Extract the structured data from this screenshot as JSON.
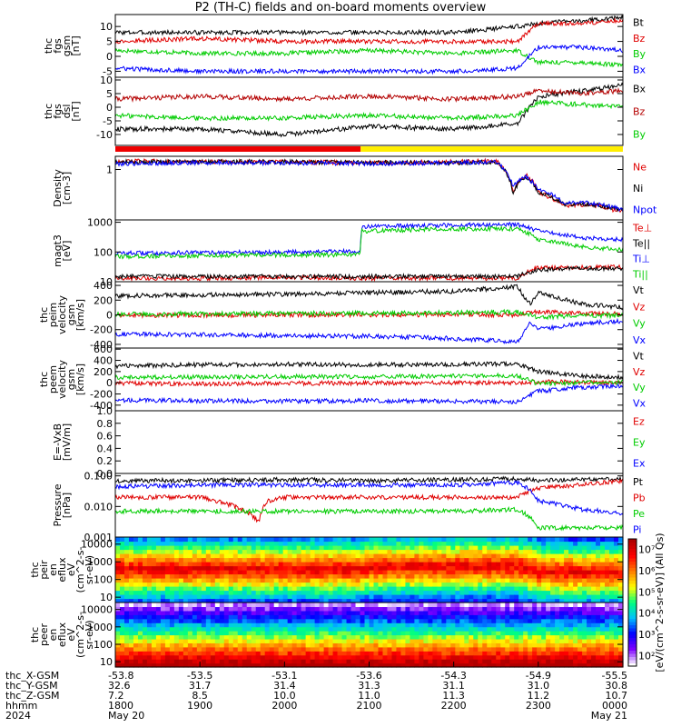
{
  "title": "P2 (TH-C) fields and on-board moments overview",
  "chart_data": [
    {
      "id": "fgs_gsm",
      "type": "line",
      "ylabel": [
        "thc",
        "fgs",
        "gsm",
        "[nT]"
      ],
      "ylim": [
        -7,
        14
      ],
      "yticks": [
        -5,
        0,
        5,
        10
      ],
      "series": [
        {
          "name": "Bt",
          "color": "#000000",
          "x": [
            18.0,
            19.0,
            20.0,
            21.0,
            22.0,
            22.75,
            23.0,
            23.5,
            24.0
          ],
          "y": [
            8,
            8,
            8,
            8,
            8,
            10,
            11,
            12,
            13
          ]
        },
        {
          "name": "Bz",
          "color": "#e00000",
          "x": [
            18.0,
            19.0,
            20.0,
            21.0,
            22.0,
            22.75,
            23.0,
            23.5,
            24.0
          ],
          "y": [
            5,
            6,
            5,
            5,
            5,
            5,
            11,
            11,
            12
          ]
        },
        {
          "name": "By",
          "color": "#00cc00",
          "x": [
            18.0,
            19.0,
            20.0,
            21.0,
            22.0,
            22.75,
            23.0,
            23.5,
            24.0
          ],
          "y": [
            2,
            1,
            1,
            2,
            1,
            2,
            -2,
            -2,
            -3
          ]
        },
        {
          "name": "Bx",
          "color": "#0000ff",
          "x": [
            18.0,
            19.0,
            20.0,
            21.0,
            22.0,
            22.75,
            23.0,
            23.5,
            24.0
          ],
          "y": [
            -4,
            -5,
            -5,
            -5,
            -5,
            -4,
            3,
            3,
            2
          ]
        }
      ]
    },
    {
      "id": "fgs_dsl",
      "type": "line",
      "ylabel": [
        "thc",
        "fgs",
        "dsl",
        "[nT]"
      ],
      "ylim": [
        -14,
        11
      ],
      "yticks": [
        -10,
        -5,
        0,
        5,
        10
      ],
      "series": [
        {
          "name": "Bx",
          "color": "#000000",
          "x": [
            18.0,
            19.0,
            20.0,
            21.0,
            22.0,
            22.75,
            23.0,
            23.5,
            24.0
          ],
          "y": [
            -8,
            -8,
            -10,
            -7,
            -8,
            -6,
            4,
            6,
            8
          ]
        },
        {
          "name": "Bz",
          "color": "#b40000",
          "x": [
            18.0,
            19.0,
            20.0,
            21.0,
            22.0,
            22.75,
            23.0,
            23.5,
            24.0
          ],
          "y": [
            3,
            4,
            3,
            4,
            3,
            4,
            6,
            5,
            6
          ]
        },
        {
          "name": "By",
          "color": "#00cc00",
          "x": [
            18.0,
            19.0,
            20.0,
            21.0,
            22.0,
            22.75,
            23.0,
            23.5,
            24.0
          ],
          "y": [
            -3,
            -4,
            -4,
            -3,
            -4,
            -3,
            2,
            1,
            0
          ]
        }
      ]
    },
    {
      "id": "density",
      "type": "line",
      "ylabel": [
        "Density",
        "[cm-3]"
      ],
      "yscale": "log",
      "ylim": [
        0.03,
        2.5
      ],
      "yticks": [
        1
      ],
      "series": [
        {
          "name": "Ne",
          "color": "#e00000",
          "x": [
            18.0,
            19.0,
            20.0,
            21.0,
            22.0,
            22.5,
            22.7,
            22.85,
            23.0,
            23.3,
            23.6,
            24.0
          ],
          "y": [
            1.8,
            1.7,
            1.7,
            1.6,
            1.7,
            1.8,
            0.2,
            0.7,
            0.2,
            0.08,
            0.09,
            0.05
          ]
        },
        {
          "name": "Ni",
          "color": "#000000",
          "x": [
            18.0,
            19.0,
            20.0,
            21.0,
            22.0,
            22.5,
            22.7,
            22.85,
            23.0,
            23.3,
            23.6,
            24.0
          ],
          "y": [
            1.7,
            1.7,
            1.7,
            1.6,
            1.6,
            1.7,
            0.2,
            0.6,
            0.2,
            0.09,
            0.09,
            0.06
          ]
        },
        {
          "name": "Npot",
          "color": "#0000ff",
          "x": [
            18.0,
            19.0,
            20.0,
            21.0,
            22.0,
            22.5,
            22.7,
            22.85,
            23.0,
            23.3,
            23.6,
            24.0
          ],
          "y": [
            1.5,
            1.6,
            1.6,
            1.5,
            1.6,
            1.7,
            0.3,
            0.6,
            0.25,
            0.1,
            0.1,
            0.06
          ]
        }
      ]
    },
    {
      "id": "temperature",
      "type": "line",
      "ylabel": [
        "magt3",
        "[eV]"
      ],
      "yscale": "log",
      "ylim": [
        10,
        1200
      ],
      "yticks": [
        10,
        100,
        1000
      ],
      "series": [
        {
          "name": "Te⊥",
          "color": "#e00000",
          "x": [
            18.0,
            19.0,
            20.0,
            21.0,
            22.0,
            22.75,
            23.0,
            23.5,
            24.0
          ],
          "y": [
            13,
            13,
            14,
            13,
            13,
            13,
            30,
            30,
            32
          ]
        },
        {
          "name": "Te||",
          "color": "#000000",
          "x": [
            18.0,
            19.0,
            20.0,
            21.0,
            22.0,
            22.75,
            23.0,
            23.5,
            24.0
          ],
          "y": [
            15,
            15,
            15,
            15,
            15,
            15,
            25,
            28,
            28
          ]
        },
        {
          "name": "Ti⊥",
          "color": "#0000ff",
          "x": [
            18.0,
            19.0,
            20.0,
            20.9,
            20.91,
            22.0,
            22.75,
            23.0,
            23.5,
            24.0
          ],
          "y": [
            90,
            95,
            100,
            105,
            700,
            800,
            850,
            500,
            300,
            260
          ]
        },
        {
          "name": "Ti||",
          "color": "#00cc00",
          "x": [
            18.0,
            19.0,
            20.0,
            20.9,
            20.91,
            22.0,
            22.75,
            23.0,
            23.5,
            24.0
          ],
          "y": [
            70,
            75,
            80,
            80,
            500,
            600,
            600,
            250,
            150,
            120
          ]
        }
      ]
    },
    {
      "id": "peim_velocity",
      "type": "line",
      "ylabel": [
        "thc",
        "peim",
        "velocity",
        "gsm",
        "[km/s]"
      ],
      "ylim": [
        -450,
        450
      ],
      "yticks": [
        -400,
        -200,
        0,
        200,
        400
      ],
      "series": [
        {
          "name": "Vt",
          "color": "#000000",
          "x": [
            18.0,
            19.0,
            20.0,
            21.0,
            22.0,
            22.75,
            22.9,
            23.0,
            23.5,
            24.0
          ],
          "y": [
            260,
            270,
            280,
            300,
            320,
            380,
            150,
            300,
            150,
            100
          ]
        },
        {
          "name": "Vz",
          "color": "#e00000",
          "x": [
            18.0,
            19.0,
            20.0,
            21.0,
            22.0,
            22.75,
            23.0,
            23.5,
            24.0
          ],
          "y": [
            -5,
            -5,
            0,
            0,
            5,
            0,
            40,
            20,
            10
          ]
        },
        {
          "name": "Vy",
          "color": "#00cc00",
          "x": [
            18.0,
            19.0,
            20.0,
            21.0,
            22.0,
            22.75,
            23.0,
            23.5,
            24.0
          ],
          "y": [
            10,
            15,
            20,
            20,
            30,
            40,
            -30,
            -10,
            -5
          ]
        },
        {
          "name": "Vx",
          "color": "#0000ff",
          "x": [
            18.0,
            19.0,
            20.0,
            21.0,
            22.0,
            22.75,
            22.9,
            23.0,
            23.5,
            24.0
          ],
          "y": [
            -260,
            -270,
            -280,
            -290,
            -320,
            -370,
            -100,
            -200,
            -120,
            -80
          ]
        }
      ]
    },
    {
      "id": "peem_velocity",
      "type": "line",
      "ylabel": [
        "thc",
        "peem",
        "velocity",
        "gsm",
        "[km/s]"
      ],
      "ylim": [
        -500,
        620
      ],
      "yticks": [
        -400,
        -200,
        0,
        200,
        400,
        600
      ],
      "series": [
        {
          "name": "Vt",
          "color": "#000000",
          "x": [
            18.0,
            19.0,
            20.0,
            21.0,
            22.0,
            22.75,
            23.0,
            23.5,
            24.0
          ],
          "y": [
            300,
            320,
            330,
            320,
            330,
            340,
            200,
            120,
            100
          ]
        },
        {
          "name": "Vz",
          "color": "#e00000",
          "x": [
            18.0,
            19.0,
            20.0,
            21.0,
            22.0,
            22.75,
            23.0,
            23.5,
            24.0
          ],
          "y": [
            -10,
            -20,
            -10,
            -5,
            0,
            0,
            20,
            10,
            5
          ]
        },
        {
          "name": "Vy",
          "color": "#00cc00",
          "x": [
            18.0,
            19.0,
            20.0,
            21.0,
            22.0,
            22.75,
            23.0,
            23.5,
            24.0
          ],
          "y": [
            100,
            100,
            110,
            110,
            120,
            130,
            -20,
            0,
            10
          ]
        },
        {
          "name": "Vx",
          "color": "#0000ff",
          "x": [
            18.0,
            19.0,
            20.0,
            21.0,
            22.0,
            22.75,
            23.0,
            23.5,
            24.0
          ],
          "y": [
            -310,
            -320,
            -330,
            -320,
            -330,
            -340,
            -150,
            -80,
            -60
          ]
        }
      ]
    },
    {
      "id": "efield",
      "type": "line",
      "ylabel": [
        "E=-VxB",
        "[mV/m]"
      ],
      "ylim": [
        0,
        1
      ],
      "yticks": [
        0.0,
        0.2,
        0.4,
        0.6,
        0.8,
        1.0
      ],
      "series": [
        {
          "name": "Ez",
          "color": "#e00000",
          "x": [],
          "y": []
        },
        {
          "name": "Ey",
          "color": "#00cc00",
          "x": [],
          "y": []
        },
        {
          "name": "Ex",
          "color": "#0000ff",
          "x": [],
          "y": []
        }
      ]
    },
    {
      "id": "pressure",
      "type": "line",
      "ylabel": [
        "Pressure",
        "[nPa]"
      ],
      "yscale": "log",
      "ylim": [
        0.001,
        0.12
      ],
      "yticks": [
        0.001,
        0.01,
        0.1
      ],
      "ytick_labels": [
        "0.001",
        "0.010",
        "0.100"
      ],
      "series": [
        {
          "name": "Pt",
          "color": "#000000",
          "x": [
            18.0,
            19.0,
            20.0,
            21.0,
            22.0,
            22.75,
            23.0,
            23.5,
            24.0
          ],
          "y": [
            0.07,
            0.07,
            0.075,
            0.07,
            0.075,
            0.08,
            0.07,
            0.075,
            0.08
          ]
        },
        {
          "name": "Pb",
          "color": "#e00000",
          "x": [
            18.0,
            19.0,
            19.7,
            19.8,
            20.0,
            21.0,
            22.0,
            22.75,
            23.0,
            23.5,
            24.0
          ],
          "y": [
            0.02,
            0.02,
            0.003,
            0.015,
            0.02,
            0.02,
            0.02,
            0.02,
            0.04,
            0.05,
            0.07
          ]
        },
        {
          "name": "Pe",
          "color": "#00cc00",
          "x": [
            18.0,
            19.0,
            20.0,
            21.0,
            22.0,
            22.75,
            23.0,
            23.5,
            24.0
          ],
          "y": [
            0.007,
            0.007,
            0.007,
            0.007,
            0.007,
            0.008,
            0.002,
            0.002,
            0.002
          ]
        },
        {
          "name": "Pi",
          "color": "#0000ff",
          "x": [
            18.0,
            19.0,
            20.0,
            21.0,
            22.0,
            22.75,
            23.0,
            23.5,
            24.0
          ],
          "y": [
            0.045,
            0.05,
            0.05,
            0.05,
            0.05,
            0.06,
            0.015,
            0.008,
            0.006
          ]
        }
      ]
    },
    {
      "id": "peir_spec",
      "type": "heatmap",
      "ylabel": [
        "thc",
        "peir",
        "en",
        "eflux",
        "eV",
        "(cm^2-s-",
        "sr-eV)"
      ],
      "yscale": "log",
      "ylim": [
        5,
        25000
      ],
      "yticks": [
        10,
        100,
        1000,
        10000
      ],
      "peak_energy": [
        {
          "x": 18.0,
          "e": 400
        },
        {
          "x": 20.9,
          "e": 400
        },
        {
          "x": 21.0,
          "e": 550
        },
        {
          "x": 22.75,
          "e": 600
        },
        {
          "x": 23.0,
          "e": 300
        },
        {
          "x": 24.0,
          "e": 250
        }
      ]
    },
    {
      "id": "peer_spec",
      "type": "heatmap",
      "ylabel": [
        "thc",
        "peer",
        "en",
        "eflux",
        "eV",
        "(cm^2-s-",
        "sr-eV)"
      ],
      "yscale": "log",
      "ylim": [
        5,
        25000
      ],
      "yticks": [
        10,
        100,
        1000,
        10000
      ],
      "peak_energy": [
        {
          "x": 18.0,
          "e": 12
        },
        {
          "x": 24.0,
          "e": 12
        }
      ]
    }
  ],
  "bar_segments": [
    {
      "x0": 18.0,
      "x1": 20.9,
      "color": "#ee0000"
    },
    {
      "x0": 20.9,
      "x1": 24.0,
      "color": "#ffee00"
    }
  ],
  "colorbar": {
    "label": "[eV/(cm^2-s-sr-eV)]  (All Qs)",
    "tick_labels": [
      "10²",
      "10³",
      "10⁴",
      "10⁵",
      "10⁶",
      "10⁷"
    ],
    "colors": [
      "#ffffff",
      "#7f00ff",
      "#0000ff",
      "#00bfff",
      "#00ff80",
      "#ffff00",
      "#ff8000",
      "#ff0000",
      "#b00000"
    ]
  },
  "time_axis": {
    "xlim": [
      18.0,
      24.0
    ],
    "rows": [
      {
        "label": "thc_X-GSM",
        "values": [
          "-53.8",
          "-53.5",
          "-53.1",
          "-53.6",
          "-54.3",
          "-54.9",
          "-55.5"
        ]
      },
      {
        "label": "thc_Y-GSM",
        "values": [
          "32.6",
          "31.7",
          "31.4",
          "31.3",
          "31.1",
          "31.0",
          "30.8"
        ]
      },
      {
        "label": "thc_Z-GSM",
        "values": [
          "7.2",
          "8.5",
          "10.0",
          "11.0",
          "11.3",
          "11.2",
          "10.7"
        ]
      },
      {
        "label": "hhmm",
        "values": [
          "1800",
          "1900",
          "2000",
          "2100",
          "2200",
          "2300",
          "0000"
        ]
      },
      {
        "label": "2024",
        "values": [
          "May 20",
          "",
          "",
          "",
          "",
          "",
          "May 21"
        ]
      }
    ]
  }
}
